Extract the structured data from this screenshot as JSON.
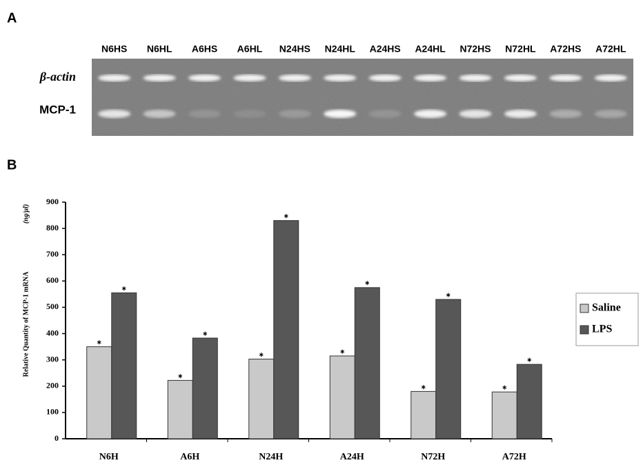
{
  "panel_a": {
    "label": "A",
    "lanes": [
      "N6HS",
      "N6HL",
      "A6HS",
      "A6HL",
      "N24HS",
      "N24HL",
      "A24HS",
      "A24HL",
      "N72HS",
      "N72HL",
      "A72HS",
      "A72HL"
    ],
    "rows": [
      "β-actin",
      "MCP-1"
    ]
  },
  "panel_b": {
    "label": "B"
  },
  "chart_data": {
    "type": "bar",
    "y_label": "Relative Quantity of MCP-1 mRNA",
    "y_unit": "(ng/μl)",
    "categories": [
      "N6H",
      "A6H",
      "N24H",
      "A24H",
      "N72H",
      "A72H"
    ],
    "series": [
      {
        "name": "Saline",
        "color": "#c9c9c9",
        "values": [
          350,
          222,
          303,
          315,
          180,
          178
        ]
      },
      {
        "name": "LPS",
        "color": "#575757",
        "values": [
          555,
          383,
          830,
          575,
          530,
          283
        ]
      }
    ],
    "ylim": [
      0,
      900
    ],
    "yticks": [
      0,
      100,
      200,
      300,
      400,
      500,
      600,
      700,
      800,
      900
    ],
    "legend": "right"
  }
}
